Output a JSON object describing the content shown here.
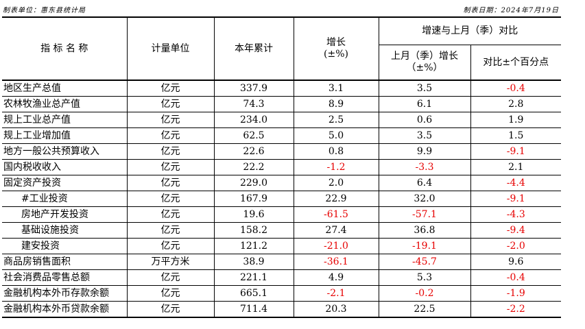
{
  "header": {
    "unit_label": "制表单位：惠东县统计局",
    "date_label": "制表日期：2024年7月19日"
  },
  "columns": {
    "indicator": "指 标 名 称",
    "unit": "计量单位",
    "ytd": "本年累计",
    "growth_line1": "增长",
    "growth_line2": "(±%)",
    "compare_group": "增速与上月（季）对比",
    "prev_growth_line1": "上月（季）增长",
    "prev_growth_line2": "（±%）",
    "pct_points": "对比±个百分点"
  },
  "rows": [
    {
      "name": "地区生产总值",
      "unit": "亿元",
      "ytd": "337.9",
      "growth": "3.1",
      "prev": "3.5",
      "diff": "-0.4",
      "indent": false
    },
    {
      "name": "农林牧渔业总产值",
      "unit": "亿元",
      "ytd": "74.3",
      "growth": "8.9",
      "prev": "6.1",
      "diff": "2.8",
      "indent": false
    },
    {
      "name": "规上工业总产值",
      "unit": "亿元",
      "ytd": "234.0",
      "growth": "2.5",
      "prev": "0.6",
      "diff": "1.9",
      "indent": false
    },
    {
      "name": "规上工业增加值",
      "unit": "亿元",
      "ytd": "62.5",
      "growth": "5.0",
      "prev": "3.5",
      "diff": "1.5",
      "indent": false
    },
    {
      "name": "地方一般公共预算收入",
      "unit": "亿元",
      "ytd": "22.6",
      "growth": "0.8",
      "prev": "9.9",
      "diff": "-9.1",
      "indent": false
    },
    {
      "name": "国内税收收入",
      "unit": "亿元",
      "ytd": "22.2",
      "growth": "-1.2",
      "prev": "-3.3",
      "diff": "2.1",
      "indent": false
    },
    {
      "name": "固定资产投资",
      "unit": "亿元",
      "ytd": "229.0",
      "growth": "2.0",
      "prev": "6.4",
      "diff": "-4.4",
      "indent": false
    },
    {
      "name": "#工业投资",
      "unit": "亿元",
      "ytd": "167.9",
      "growth": "22.9",
      "prev": "32.0",
      "diff": "-9.1",
      "indent": true
    },
    {
      "name": "房地产开发投资",
      "unit": "亿元",
      "ytd": "19.6",
      "growth": "-61.5",
      "prev": "-57.1",
      "diff": "-4.3",
      "indent": true
    },
    {
      "name": "基础设施投资",
      "unit": "亿元",
      "ytd": "158.2",
      "growth": "27.4",
      "prev": "36.8",
      "diff": "-9.4",
      "indent": true
    },
    {
      "name": "建安投资",
      "unit": "亿元",
      "ytd": "121.2",
      "growth": "-21.0",
      "prev": "-19.1",
      "diff": "-2.0",
      "indent": true
    },
    {
      "name": "商品房销售面积",
      "unit": "万平方米",
      "ytd": "38.9",
      "growth": "-36.1",
      "prev": "-45.7",
      "diff": "9.6",
      "indent": false
    },
    {
      "name": "社会消费品零售总额",
      "unit": "亿元",
      "ytd": "221.1",
      "growth": "4.9",
      "prev": "5.3",
      "diff": "-0.4",
      "indent": false
    },
    {
      "name": "金融机构本外币存款余额",
      "unit": "亿元",
      "ytd": "665.1",
      "growth": "-2.1",
      "prev": "-0.2",
      "diff": "-1.9",
      "indent": false
    },
    {
      "name": "金融机构本外币贷款余额",
      "unit": "亿元",
      "ytd": "711.4",
      "growth": "20.3",
      "prev": "22.5",
      "diff": "-2.2",
      "indent": false
    }
  ],
  "colors": {
    "negative": "#e60000",
    "positive": "#000000"
  }
}
